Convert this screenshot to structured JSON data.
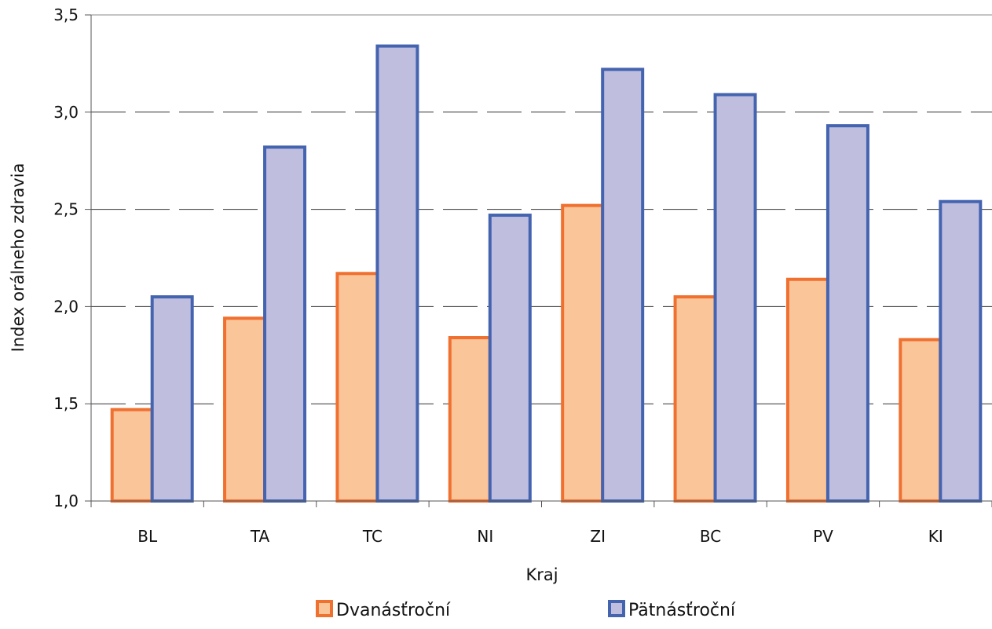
{
  "chart_data": {
    "type": "bar",
    "title": "",
    "xlabel": "Kraj",
    "ylabel": "Index orálneho zdravia",
    "categories": [
      "BL",
      "TA",
      "TC",
      "NI",
      "ZI",
      "BC",
      "PV",
      "KI"
    ],
    "series": [
      {
        "name": "Dvanásťroční",
        "fill": "#fbc59a",
        "stroke": "#f07030",
        "values": [
          1.47,
          1.94,
          2.17,
          1.84,
          2.52,
          2.05,
          2.14,
          1.83
        ]
      },
      {
        "name": "Pätnásťroční",
        "fill": "#bfbedf",
        "stroke": "#4564b0",
        "values": [
          2.05,
          2.82,
          3.34,
          2.47,
          3.22,
          3.09,
          2.93,
          2.54
        ]
      }
    ],
    "ylim": [
      1.0,
      3.5
    ],
    "yticks": [
      "1,0",
      "1,5",
      "2,0",
      "2,5",
      "3,0",
      "3,5"
    ],
    "ytick_values": [
      1.0,
      1.5,
      2.0,
      2.5,
      3.0,
      3.5
    ],
    "grid": true,
    "grid_style": "dashed",
    "legend_position": "bottom"
  }
}
